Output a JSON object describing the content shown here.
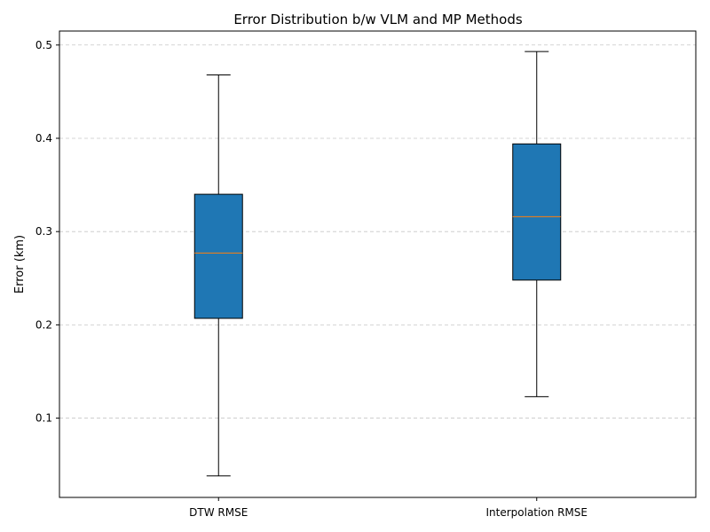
{
  "chart_data": {
    "type": "box",
    "title": "Error Distribution b/w VLM and MP Methods",
    "xlabel": "",
    "ylabel": "Error (km)",
    "ylim": [
      0.015,
      0.515
    ],
    "yticks": [
      0.1,
      0.2,
      0.3,
      0.4,
      0.5
    ],
    "ytick_labels": [
      "0.1",
      "0.2",
      "0.3",
      "0.4",
      "0.5"
    ],
    "grid": "y-dashed",
    "categories": [
      "DTW RMSE",
      "Interpolation RMSE"
    ],
    "boxes": [
      {
        "name": "DTW RMSE",
        "whisker_low": 0.038,
        "q1": 0.207,
        "median": 0.277,
        "q3": 0.34,
        "whisker_high": 0.468
      },
      {
        "name": "Interpolation RMSE",
        "whisker_low": 0.123,
        "q1": 0.248,
        "median": 0.316,
        "q3": 0.394,
        "whisker_high": 0.493
      }
    ],
    "colors": {
      "box_fill": "#1f77b4",
      "median": "#ff7f0e",
      "grid": "#c8c8c8"
    }
  }
}
